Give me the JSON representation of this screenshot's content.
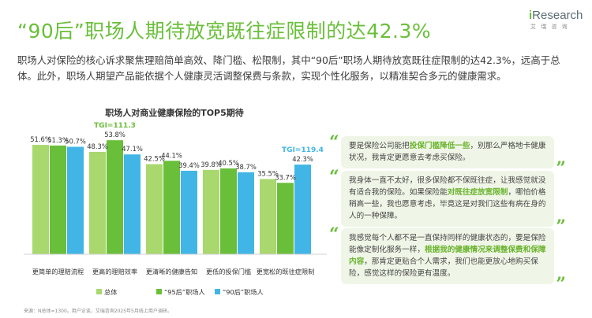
{
  "header": {
    "title": "“90后”职场人期待放宽既往症限制的达42.3%",
    "subtitle": "职场人对保险的核心诉求聚焦理赔简单高效、降门槛、松限制，其中“90后”职场人期待放宽既往症限制的达42.3%，远高于总体。此外，职场人期望产品能依据个人健康灵活调整保费与条款，实现个性化服务，以精准契合多元的健康需求。"
  },
  "logo": {
    "i": "i",
    "word": "Research",
    "sub": "艾 瑞 咨 询"
  },
  "chart_data": {
    "type": "bar",
    "title": "职场人对商业健康保险的TOP5期待",
    "categories": [
      "更简单的理赔流程",
      "更高的理赔效率",
      "更清晰的健康告知",
      "更低的投保门槛",
      "更宽松的既往症限制"
    ],
    "series": [
      {
        "name": "总体",
        "values": [
          51.6,
          48.3,
          42.5,
          39.8,
          35.5
        ],
        "labels": [
          "51.6%",
          "48.3%",
          "42.5%",
          "39.8%",
          "35.5%"
        ]
      },
      {
        "name": "“95后”职场人",
        "values": [
          51.3,
          53.8,
          44.1,
          40.5,
          33.7
        ],
        "labels": [
          "51.3%",
          "53.8%",
          "44.1%",
          "40.5%",
          "33.7%"
        ]
      },
      {
        "name": "“90后”职场人",
        "values": [
          50.7,
          47.1,
          39.4,
          38.7,
          42.3
        ],
        "labels": [
          "50.7%",
          "47.1%",
          "39.4%",
          "38.7%",
          "42.3%"
        ]
      }
    ],
    "annotations": [
      {
        "text": "TGI=111.3",
        "category": "更高的理赔效率",
        "series": "“95后”职场人",
        "color": "#6abf3a"
      },
      {
        "text": "TGI=119.4",
        "category": "更宽松的既往症限制",
        "series": "“90后”职场人",
        "color": "#41b6e6"
      }
    ],
    "ylim": [
      0,
      65
    ],
    "grid": false,
    "legend": "bottom",
    "colors": {
      "总体": "#a9d86e",
      "“95后”职场人": "#6abf3a",
      "“90后”职场人": "#41b6e6"
    }
  },
  "quotes": [
    {
      "parts": [
        {
          "t": "要是保险公司能把",
          "hl": false
        },
        {
          "t": "投保门槛降低一些",
          "hl": true
        },
        {
          "t": "，别那么严格地卡健康状况，我肯定更愿意去考虑买保险。",
          "hl": false
        }
      ]
    },
    {
      "parts": [
        {
          "t": "我身体一直不太好，很多保险都不保既往症，让我感觉就没有适合我的保险。如果保险能",
          "hl": false
        },
        {
          "t": "对既往症放宽限制",
          "hl": true
        },
        {
          "t": "，哪怕价格稍高一些，我也愿意考虑，毕竟这是对我们这些有病在身的人的一种保障。",
          "hl": false
        }
      ]
    },
    {
      "parts": [
        {
          "t": "我感觉每个人都不是一直保持同样的健康状态的，要是保险能像定制化服务一样，",
          "hl": false
        },
        {
          "t": "根据我的健康情况来调整保费和保障内容",
          "hl": true
        },
        {
          "t": "，那肯定更贴合个人需求，我们也能更放心地购买保险，感觉这样的保险更有温度。",
          "hl": false
        }
      ]
    }
  ],
  "quote_marks": {
    "open": "“",
    "close": "”"
  },
  "footnote": "来源：N总体=1300。用户访谈，艾瑞咨询2025年5月线上用户调研。"
}
